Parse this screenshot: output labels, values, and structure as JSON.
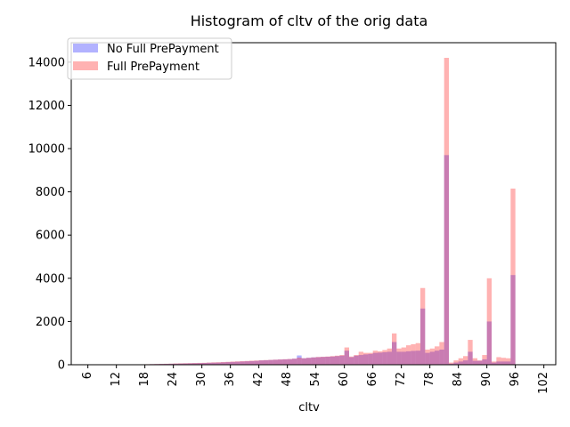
{
  "chart_data": {
    "type": "bar",
    "title": "Histogram of cltv of the orig data",
    "xlabel": "cltv",
    "ylabel": "",
    "xlim": [
      2.5,
      104.5
    ],
    "ylim": [
      0,
      14900
    ],
    "xticks": [
      6,
      12,
      18,
      24,
      30,
      36,
      42,
      48,
      54,
      60,
      66,
      72,
      78,
      84,
      90,
      96,
      102
    ],
    "yticks": [
      0,
      2000,
      4000,
      6000,
      8000,
      10000,
      12000,
      14000
    ],
    "bin_width": 1,
    "legend_position": "upper-left",
    "series": [
      {
        "name": "No Full PrePayment",
        "color": "#0000ff",
        "alpha": 0.3,
        "bins": [
          [
            6,
            5
          ],
          [
            7,
            5
          ],
          [
            8,
            5
          ],
          [
            9,
            5
          ],
          [
            10,
            5
          ],
          [
            11,
            5
          ],
          [
            12,
            8
          ],
          [
            13,
            8
          ],
          [
            14,
            10
          ],
          [
            15,
            12
          ],
          [
            16,
            15
          ],
          [
            17,
            15
          ],
          [
            18,
            20
          ],
          [
            19,
            25
          ],
          [
            20,
            30
          ],
          [
            21,
            35
          ],
          [
            22,
            40
          ],
          [
            23,
            45
          ],
          [
            24,
            50
          ],
          [
            25,
            55
          ],
          [
            26,
            60
          ],
          [
            27,
            65
          ],
          [
            28,
            70
          ],
          [
            29,
            75
          ],
          [
            30,
            80
          ],
          [
            31,
            90
          ],
          [
            32,
            95
          ],
          [
            33,
            100
          ],
          [
            34,
            110
          ],
          [
            35,
            120
          ],
          [
            36,
            130
          ],
          [
            37,
            140
          ],
          [
            38,
            150
          ],
          [
            39,
            160
          ],
          [
            40,
            170
          ],
          [
            41,
            180
          ],
          [
            42,
            200
          ],
          [
            43,
            210
          ],
          [
            44,
            220
          ],
          [
            45,
            230
          ],
          [
            46,
            240
          ],
          [
            47,
            250
          ],
          [
            48,
            260
          ],
          [
            49,
            280
          ],
          [
            50,
            430
          ],
          [
            51,
            300
          ],
          [
            52,
            320
          ],
          [
            53,
            340
          ],
          [
            54,
            350
          ],
          [
            55,
            360
          ],
          [
            56,
            370
          ],
          [
            57,
            380
          ],
          [
            58,
            400
          ],
          [
            59,
            420
          ],
          [
            60,
            650
          ],
          [
            61,
            350
          ],
          [
            62,
            420
          ],
          [
            63,
            450
          ],
          [
            64,
            480
          ],
          [
            65,
            500
          ],
          [
            66,
            550
          ],
          [
            67,
            560
          ],
          [
            68,
            580
          ],
          [
            69,
            600
          ],
          [
            70,
            1050
          ],
          [
            71,
            600
          ],
          [
            72,
            600
          ],
          [
            73,
            620
          ],
          [
            74,
            640
          ],
          [
            75,
            650
          ],
          [
            76,
            2600
          ],
          [
            77,
            550
          ],
          [
            78,
            600
          ],
          [
            79,
            650
          ],
          [
            80,
            700
          ],
          [
            81,
            9700
          ],
          [
            82,
            50
          ],
          [
            83,
            100
          ],
          [
            84,
            150
          ],
          [
            85,
            200
          ],
          [
            86,
            600
          ],
          [
            87,
            180
          ],
          [
            88,
            180
          ],
          [
            89,
            250
          ],
          [
            90,
            2000
          ],
          [
            91,
            100
          ],
          [
            92,
            150
          ],
          [
            93,
            150
          ],
          [
            94,
            150
          ],
          [
            95,
            4150
          ]
        ]
      },
      {
        "name": "Full PrePayment",
        "color": "#ff0000",
        "alpha": 0.3,
        "bins": [
          [
            6,
            8
          ],
          [
            7,
            8
          ],
          [
            8,
            8
          ],
          [
            9,
            8
          ],
          [
            10,
            8
          ],
          [
            11,
            8
          ],
          [
            12,
            10
          ],
          [
            13,
            10
          ],
          [
            14,
            12
          ],
          [
            15,
            15
          ],
          [
            16,
            18
          ],
          [
            17,
            20
          ],
          [
            18,
            25
          ],
          [
            19,
            30
          ],
          [
            20,
            35
          ],
          [
            21,
            40
          ],
          [
            22,
            45
          ],
          [
            23,
            50
          ],
          [
            24,
            60
          ],
          [
            25,
            65
          ],
          [
            26,
            70
          ],
          [
            27,
            75
          ],
          [
            28,
            80
          ],
          [
            29,
            85
          ],
          [
            30,
            90
          ],
          [
            31,
            100
          ],
          [
            32,
            110
          ],
          [
            33,
            115
          ],
          [
            34,
            125
          ],
          [
            35,
            135
          ],
          [
            36,
            145
          ],
          [
            37,
            155
          ],
          [
            38,
            165
          ],
          [
            39,
            175
          ],
          [
            40,
            185
          ],
          [
            41,
            195
          ],
          [
            42,
            205
          ],
          [
            43,
            215
          ],
          [
            44,
            225
          ],
          [
            45,
            235
          ],
          [
            46,
            245
          ],
          [
            47,
            255
          ],
          [
            48,
            265
          ],
          [
            49,
            280
          ],
          [
            50,
            330
          ],
          [
            51,
            300
          ],
          [
            52,
            320
          ],
          [
            53,
            340
          ],
          [
            54,
            360
          ],
          [
            55,
            370
          ],
          [
            56,
            380
          ],
          [
            57,
            400
          ],
          [
            58,
            420
          ],
          [
            59,
            450
          ],
          [
            60,
            800
          ],
          [
            61,
            380
          ],
          [
            62,
            450
          ],
          [
            63,
            600
          ],
          [
            64,
            550
          ],
          [
            65,
            550
          ],
          [
            66,
            650
          ],
          [
            67,
            620
          ],
          [
            68,
            680
          ],
          [
            69,
            750
          ],
          [
            70,
            1450
          ],
          [
            71,
            750
          ],
          [
            72,
            800
          ],
          [
            73,
            900
          ],
          [
            74,
            950
          ],
          [
            75,
            1000
          ],
          [
            76,
            3550
          ],
          [
            77,
            700
          ],
          [
            78,
            750
          ],
          [
            79,
            850
          ],
          [
            80,
            1050
          ],
          [
            81,
            14200
          ],
          [
            82,
            100
          ],
          [
            83,
            200
          ],
          [
            84,
            300
          ],
          [
            85,
            400
          ],
          [
            86,
            1150
          ],
          [
            87,
            300
          ],
          [
            88,
            200
          ],
          [
            89,
            450
          ],
          [
            90,
            4000
          ],
          [
            91,
            150
          ],
          [
            92,
            350
          ],
          [
            93,
            320
          ],
          [
            94,
            300
          ],
          [
            95,
            8150
          ]
        ]
      }
    ]
  }
}
